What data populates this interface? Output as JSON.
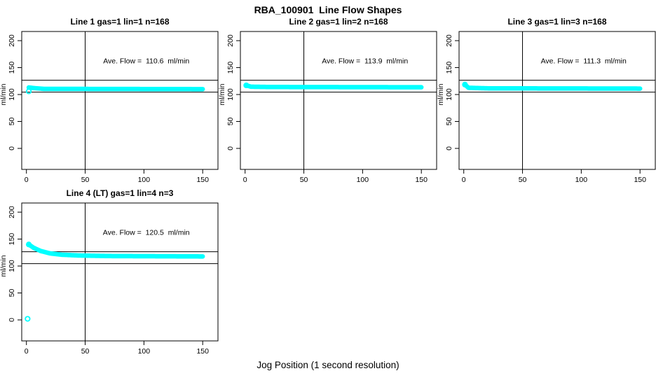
{
  "figure": {
    "title": "RBA_100901  Line Flow Shapes",
    "xlabel": "Jog Position (1 second resolution)",
    "background_color": "#ffffff",
    "line_color": "#000000",
    "point_color": "#00ffff"
  },
  "chart_data": {
    "type": "scatter",
    "title": "RBA_100901  Line Flow Shapes",
    "xlabel": "Jog Position (1 second resolution)",
    "ylabel": "ml/min",
    "x_ticks": [
      0,
      50,
      100,
      150
    ],
    "y_ticks": [
      0,
      50,
      100,
      150,
      200
    ],
    "xlim": [
      -4,
      163
    ],
    "ylim": [
      -39,
      217
    ],
    "grid": false,
    "vline_x": 50,
    "ref_lines": [
      126.5,
      104.5
    ],
    "point_color": "#00ffff",
    "panels": [
      {
        "title": "Line 1 gas=1 lin=1 n=168",
        "annotation": "Ave. Flow =  110.6  ml/min",
        "avg_flow_ml_min": 110.6,
        "gas": 1,
        "lin": 1,
        "n": 168,
        "band": [
          [
            2,
            113
          ],
          [
            6,
            112
          ],
          [
            15,
            110.5
          ],
          [
            150,
            110
          ]
        ],
        "rings": [
          [
            2,
            106
          ]
        ]
      },
      {
        "title": "Line 2 gas=1 lin=2 n=168",
        "annotation": "Ave. Flow =  113.9  ml/min",
        "avg_flow_ml_min": 113.9,
        "gas": 1,
        "lin": 2,
        "n": 168,
        "band": [
          [
            1,
            117
          ],
          [
            5,
            114.5
          ],
          [
            20,
            114
          ],
          [
            150,
            113.5
          ]
        ],
        "rings": [
          [
            1,
            117
          ]
        ]
      },
      {
        "title": "Line 3 gas=1 lin=3 n=168",
        "annotation": "Ave. Flow =  111.3  ml/min",
        "avg_flow_ml_min": 111.3,
        "gas": 1,
        "lin": 3,
        "n": 168,
        "band": [
          [
            1,
            118.5
          ],
          [
            4,
            112.5
          ],
          [
            20,
            111.5
          ],
          [
            150,
            111
          ]
        ],
        "rings": [
          [
            1,
            118.5
          ]
        ]
      },
      {
        "title": "Line 4 (LT) gas=1 lin=4 n=3",
        "annotation": "Ave. Flow =  120.5  ml/min",
        "avg_flow_ml_min": 120.5,
        "gas": 1,
        "lin": 4,
        "n": 3,
        "band": [
          [
            2,
            140
          ],
          [
            6,
            134
          ],
          [
            12,
            128
          ],
          [
            20,
            123.5
          ],
          [
            30,
            121
          ],
          [
            45,
            119.5
          ],
          [
            70,
            118.5
          ],
          [
            150,
            117.8
          ]
        ],
        "rings": [
          [
            1,
            2
          ],
          [
            2,
            140
          ]
        ]
      }
    ]
  }
}
